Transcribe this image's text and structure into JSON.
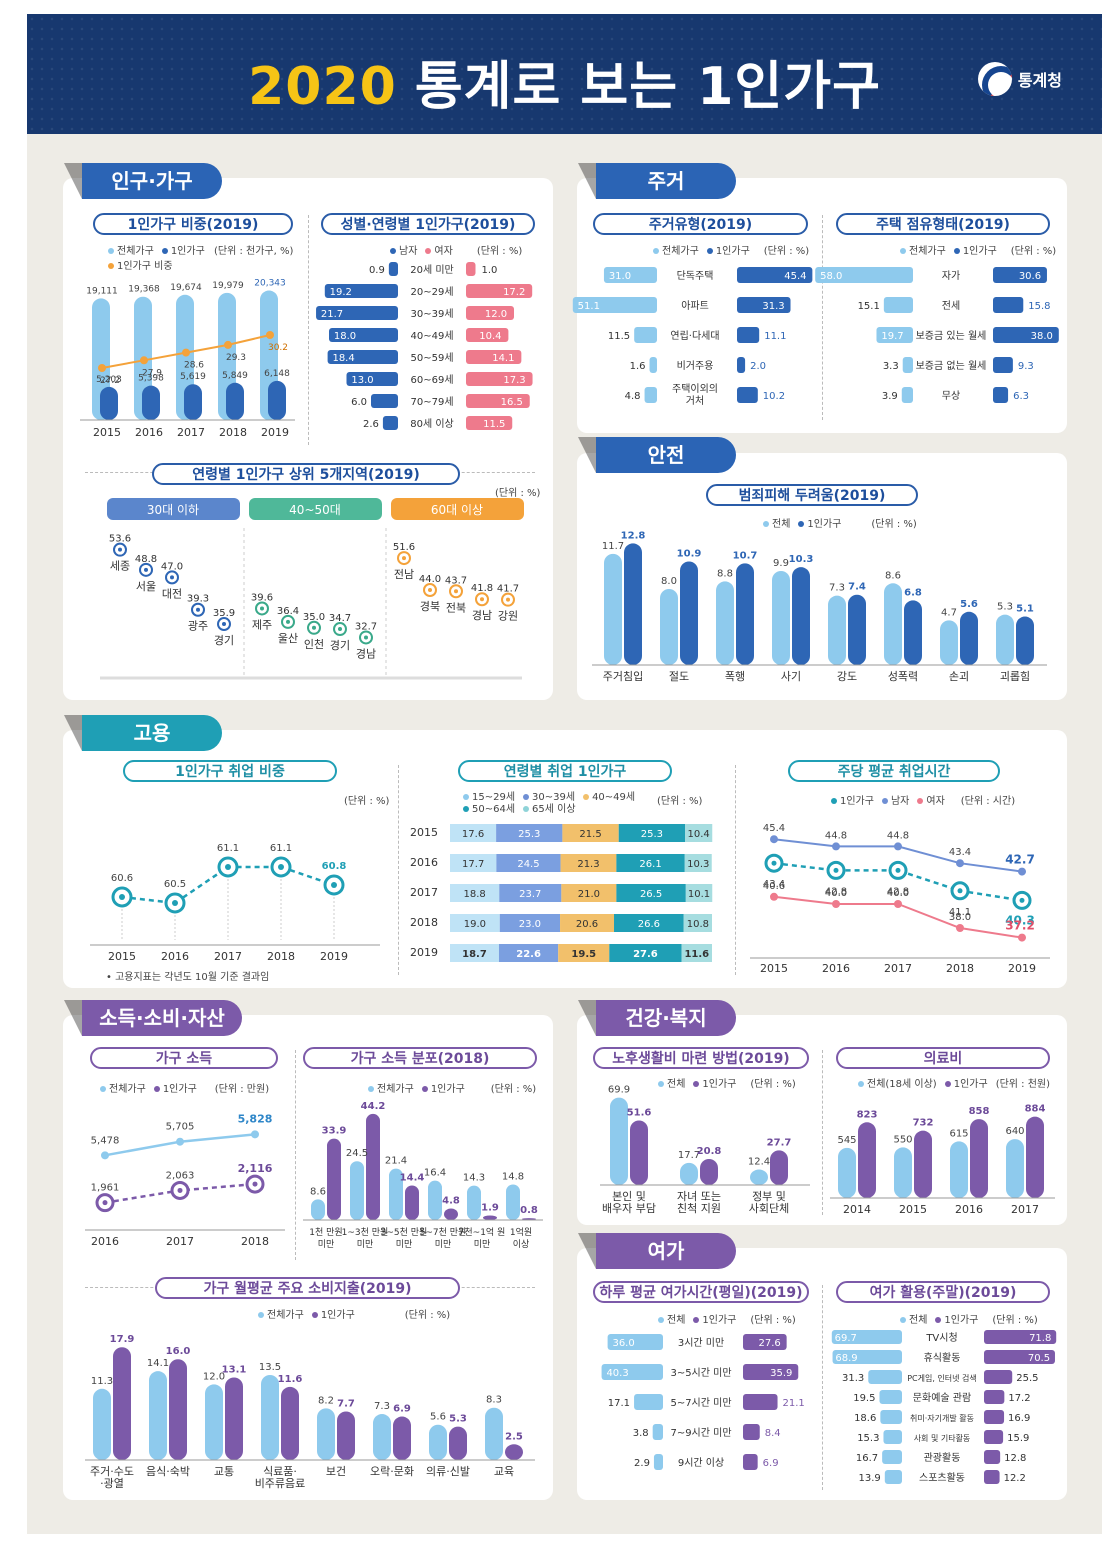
{
  "title": {
    "year": "2020",
    "main": "통계로 보는 1인가구"
  },
  "logo": "통계청",
  "colors": {
    "light": "#8ecaed",
    "blue": "#2e66b5",
    "lightpurple": "#b5a4d6",
    "purple": "#7c5aa9",
    "red": "#ee7a8c",
    "teal": "#1f9fb5",
    "orange": "#f4a23a",
    "green": "#3aa98a"
  },
  "sections": {
    "pop": "인구·가구",
    "housing": "주거",
    "safety": "안전",
    "employment": "고용",
    "income": "소득·소비·자산",
    "health": "건강·복지",
    "leisure": "여가"
  },
  "chart_data": [
    {
      "id": "share",
      "type": "bar",
      "title": "1인가구 비중(2019)",
      "unit": "(단위 : 천가구, %)",
      "legend": [
        "전체가구",
        "1인가구",
        "1인가구 비중"
      ],
      "categories": [
        "2015",
        "2016",
        "2017",
        "2018",
        "2019"
      ],
      "series": [
        {
          "name": "전체가구",
          "values": [
            19111,
            19368,
            19674,
            19979,
            20343
          ]
        },
        {
          "name": "1인가구",
          "values": [
            5203,
            5398,
            5619,
            5849,
            6148
          ]
        },
        {
          "name": "1인가구 비중",
          "values": [
            27.2,
            27.9,
            28.6,
            29.3,
            30.2
          ]
        }
      ],
      "labels": {
        "total": [
          "19,111",
          "19,368",
          "19,674",
          "19,979",
          "20,343"
        ],
        "single": [
          "5,203",
          "5,398",
          "5,619",
          "5,849",
          "6,148"
        ]
      }
    },
    {
      "id": "sexage",
      "type": "bar",
      "title": "성별·연령별 1인가구(2019)",
      "unit": "(단위 : %)",
      "legend": [
        "남자",
        "여자"
      ],
      "categories": [
        "20세 미만",
        "20~29세",
        "30~39세",
        "40~49세",
        "50~59세",
        "60~69세",
        "70~79세",
        "80세 이상"
      ],
      "series": [
        {
          "name": "남자",
          "values": [
            0.9,
            19.2,
            21.7,
            18.0,
            18.4,
            13.0,
            6.0,
            2.6
          ]
        },
        {
          "name": "여자",
          "values": [
            1.0,
            17.2,
            12.0,
            10.4,
            14.1,
            17.3,
            16.5,
            11.5
          ]
        }
      ]
    },
    {
      "id": "regions",
      "type": "scatter",
      "title": "연령별 1인가구 상위 5개지역(2019)",
      "unit": "(단위 : %)",
      "groups": [
        {
          "name": "30대 이하",
          "points": [
            {
              "label": "세종",
              "value": 53.6
            },
            {
              "label": "서울",
              "value": 48.8
            },
            {
              "label": "대전",
              "value": 47.0
            },
            {
              "label": "광주",
              "value": 39.3
            },
            {
              "label": "경기",
              "value": 35.9
            }
          ]
        },
        {
          "name": "40~50대",
          "points": [
            {
              "label": "제주",
              "value": 39.6
            },
            {
              "label": "울산",
              "value": 36.4
            },
            {
              "label": "인천",
              "value": 35.0
            },
            {
              "label": "경기",
              "value": 34.7
            },
            {
              "label": "경남",
              "value": 32.7
            }
          ]
        },
        {
          "name": "60대 이상",
          "points": [
            {
              "label": "전남",
              "value": 51.6
            },
            {
              "label": "경북",
              "value": 44.0
            },
            {
              "label": "전북",
              "value": 43.7
            },
            {
              "label": "경남",
              "value": 41.8
            },
            {
              "label": "강원",
              "value": 41.7
            }
          ]
        }
      ]
    },
    {
      "id": "htype",
      "type": "bar",
      "title": "주거유형(2019)",
      "unit": "(단위 : %)",
      "legend": [
        "전체가구",
        "1인가구"
      ],
      "categories": [
        "단독주택",
        "아파트",
        "연립·다세대",
        "비거주용",
        "주택이외의 거처"
      ],
      "series": [
        {
          "name": "전체가구",
          "values": [
            31.0,
            51.1,
            11.5,
            1.6,
            4.8
          ]
        },
        {
          "name": "1인가구",
          "values": [
            45.4,
            31.3,
            11.1,
            2.0,
            10.2
          ]
        }
      ]
    },
    {
      "id": "tenure",
      "type": "bar",
      "title": "주택 점유형태(2019)",
      "unit": "(단위 : %)",
      "legend": [
        "전체가구",
        "1인가구"
      ],
      "categories": [
        "자가",
        "전세",
        "보증금 있는 월세",
        "보증금 없는 월세",
        "무상"
      ],
      "series": [
        {
          "name": "전체가구",
          "values": [
            58.0,
            15.1,
            19.7,
            3.3,
            3.9
          ]
        },
        {
          "name": "1인가구",
          "values": [
            30.6,
            15.8,
            38.0,
            9.3,
            6.3
          ]
        }
      ]
    },
    {
      "id": "crime",
      "type": "bar",
      "title": "범죄피해 두려움(2019)",
      "unit": "(단위 : %)",
      "legend": [
        "전체",
        "1인가구"
      ],
      "categories": [
        "주거침입",
        "절도",
        "폭행",
        "사기",
        "강도",
        "성폭력",
        "손괴",
        "괴롭힘"
      ],
      "series": [
        {
          "name": "전체",
          "values": [
            11.7,
            8.0,
            8.8,
            9.9,
            7.3,
            8.6,
            4.7,
            5.3
          ]
        },
        {
          "name": "1인가구",
          "values": [
            12.8,
            10.9,
            10.7,
            10.3,
            7.4,
            6.8,
            5.6,
            5.1
          ]
        }
      ]
    },
    {
      "id": "emprate",
      "type": "line",
      "title": "1인가구 취업 비중",
      "unit": "(단위 : %)",
      "x": [
        "2015",
        "2016",
        "2017",
        "2018",
        "2019"
      ],
      "values": [
        60.6,
        60.5,
        61.1,
        61.1,
        60.8
      ],
      "note": "• 고용지표는 각년도 10월 기준 결과임"
    },
    {
      "id": "empage",
      "type": "bar",
      "title": "연령별 취업 1인가구",
      "unit": "(단위 : %)",
      "legend": [
        "15~29세",
        "30~39세",
        "40~49세",
        "50~64세",
        "65세 이상"
      ],
      "categories": [
        "2015",
        "2016",
        "2017",
        "2018",
        "2019"
      ],
      "series": [
        {
          "name": "15~29세",
          "values": [
            17.6,
            17.7,
            18.8,
            19.0,
            18.7
          ]
        },
        {
          "name": "30~39세",
          "values": [
            25.3,
            24.5,
            23.7,
            23.0,
            22.6
          ]
        },
        {
          "name": "40~49세",
          "values": [
            21.5,
            21.3,
            21.0,
            20.6,
            19.5
          ]
        },
        {
          "name": "50~64세",
          "values": [
            25.3,
            26.1,
            26.5,
            26.6,
            27.6
          ]
        },
        {
          "name": "65세 이상",
          "values": [
            10.4,
            10.3,
            10.1,
            10.8,
            11.6
          ]
        }
      ]
    },
    {
      "id": "hours",
      "type": "line",
      "title": "주당 평균 취업시간",
      "unit": "(단위 : 시간)",
      "legend": [
        "1인가구",
        "남자",
        "여자"
      ],
      "x": [
        "2015",
        "2016",
        "2017",
        "2018",
        "2019"
      ],
      "series": [
        {
          "name": "남자",
          "values": [
            45.4,
            44.8,
            44.8,
            43.4,
            42.7
          ]
        },
        {
          "name": "1인가구",
          "values": [
            43.4,
            42.8,
            42.8,
            41.1,
            40.3
          ]
        },
        {
          "name": "여자",
          "values": [
            40.6,
            40.0,
            40.0,
            38.0,
            37.2
          ]
        }
      ]
    },
    {
      "id": "hinc",
      "type": "line",
      "title": "가구 소득",
      "unit": "(단위 : 만원)",
      "legend": [
        "전체가구",
        "1인가구"
      ],
      "x": [
        "2016",
        "2017",
        "2018"
      ],
      "series": [
        {
          "name": "전체가구",
          "values": [
            5478,
            5705,
            5828
          ]
        },
        {
          "name": "1인가구",
          "values": [
            1961,
            2063,
            2116
          ]
        }
      ]
    },
    {
      "id": "idist",
      "type": "bar",
      "title": "가구 소득 분포(2018)",
      "unit": "(단위 : %)",
      "legend": [
        "전체가구",
        "1인가구"
      ],
      "categories": [
        "1천 만원 미만",
        "1~3천 만원 미만",
        "3~5천 만원 미만",
        "5~7천 만원 미만",
        "7천~1억 원 미만",
        "1억원 이상"
      ],
      "series": [
        {
          "name": "전체가구",
          "values": [
            8.6,
            24.5,
            21.4,
            16.4,
            14.3,
            14.8
          ]
        },
        {
          "name": "1인가구",
          "values": [
            33.9,
            44.2,
            14.4,
            4.8,
            1.9,
            0.8
          ]
        }
      ]
    },
    {
      "id": "spend",
      "type": "bar",
      "title": "가구 월평균 주요 소비지출(2019)",
      "unit": "(단위 : %)",
      "legend": [
        "전체가구",
        "1인가구"
      ],
      "categories": [
        "주거·수도 ·광열",
        "음식·숙박",
        "교통",
        "식료품· 비주류음료",
        "보건",
        "오락·문화",
        "의류·신발",
        "교육"
      ],
      "series": [
        {
          "name": "전체가구",
          "values": [
            11.3,
            14.1,
            12.0,
            13.5,
            8.2,
            7.3,
            5.6,
            8.3
          ]
        },
        {
          "name": "1인가구",
          "values": [
            17.9,
            16.0,
            13.1,
            11.6,
            7.7,
            6.9,
            5.3,
            2.5
          ]
        }
      ]
    },
    {
      "id": "pension",
      "type": "bar",
      "title": "노후생활비 마련 방법(2019)",
      "unit": "(단위 : %)",
      "legend": [
        "전체",
        "1인가구"
      ],
      "categories": [
        "본인 및 배우자 부담",
        "자녀 또는 친척 지원",
        "정부 및 사회단체"
      ],
      "series": [
        {
          "name": "전체",
          "values": [
            69.9,
            17.7,
            12.4
          ]
        },
        {
          "name": "1인가구",
          "values": [
            51.6,
            20.8,
            27.7
          ]
        }
      ]
    },
    {
      "id": "medical",
      "type": "bar",
      "title": "의료비",
      "unit": "(단위 : 천원)",
      "legend": [
        "전체(18세 이상)",
        "1인가구"
      ],
      "categories": [
        "2014",
        "2015",
        "2016",
        "2017"
      ],
      "series": [
        {
          "name": "전체(18세 이상)",
          "values": [
            545,
            550,
            615,
            640
          ]
        },
        {
          "name": "1인가구",
          "values": [
            823,
            732,
            858,
            884
          ]
        }
      ]
    },
    {
      "id": "leisuretime",
      "type": "bar",
      "title": "하루 평균 여가시간(평일)(2019)",
      "unit": "(단위 : %)",
      "legend": [
        "전체",
        "1인가구"
      ],
      "categories": [
        "3시간 미만",
        "3~5시간 미만",
        "5~7시간 미만",
        "7~9시간 미만",
        "9시간 이상"
      ],
      "series": [
        {
          "name": "전체",
          "values": [
            36.0,
            40.3,
            17.1,
            3.8,
            2.9
          ]
        },
        {
          "name": "1인가구",
          "values": [
            27.6,
            35.9,
            21.1,
            8.4,
            6.9
          ]
        }
      ]
    },
    {
      "id": "leisureact",
      "type": "bar",
      "title": "여가 활용(주말)(2019)",
      "unit": "(단위 : %)",
      "legend": [
        "전체",
        "1인가구"
      ],
      "categories": [
        "TV시청",
        "휴식활동",
        "PC게임, 인터넷 검색",
        "문화예술 관람",
        "취미·자기개발 활동",
        "사회 및 기타활동",
        "관광활동",
        "스포츠활동"
      ],
      "series": [
        {
          "name": "전체",
          "values": [
            69.7,
            68.9,
            31.3,
            19.5,
            18.6,
            15.3,
            16.7,
            13.9
          ]
        },
        {
          "name": "1인가구",
          "values": [
            71.8,
            70.5,
            25.5,
            17.2,
            16.9,
            15.9,
            12.8,
            12.2
          ]
        }
      ]
    }
  ]
}
